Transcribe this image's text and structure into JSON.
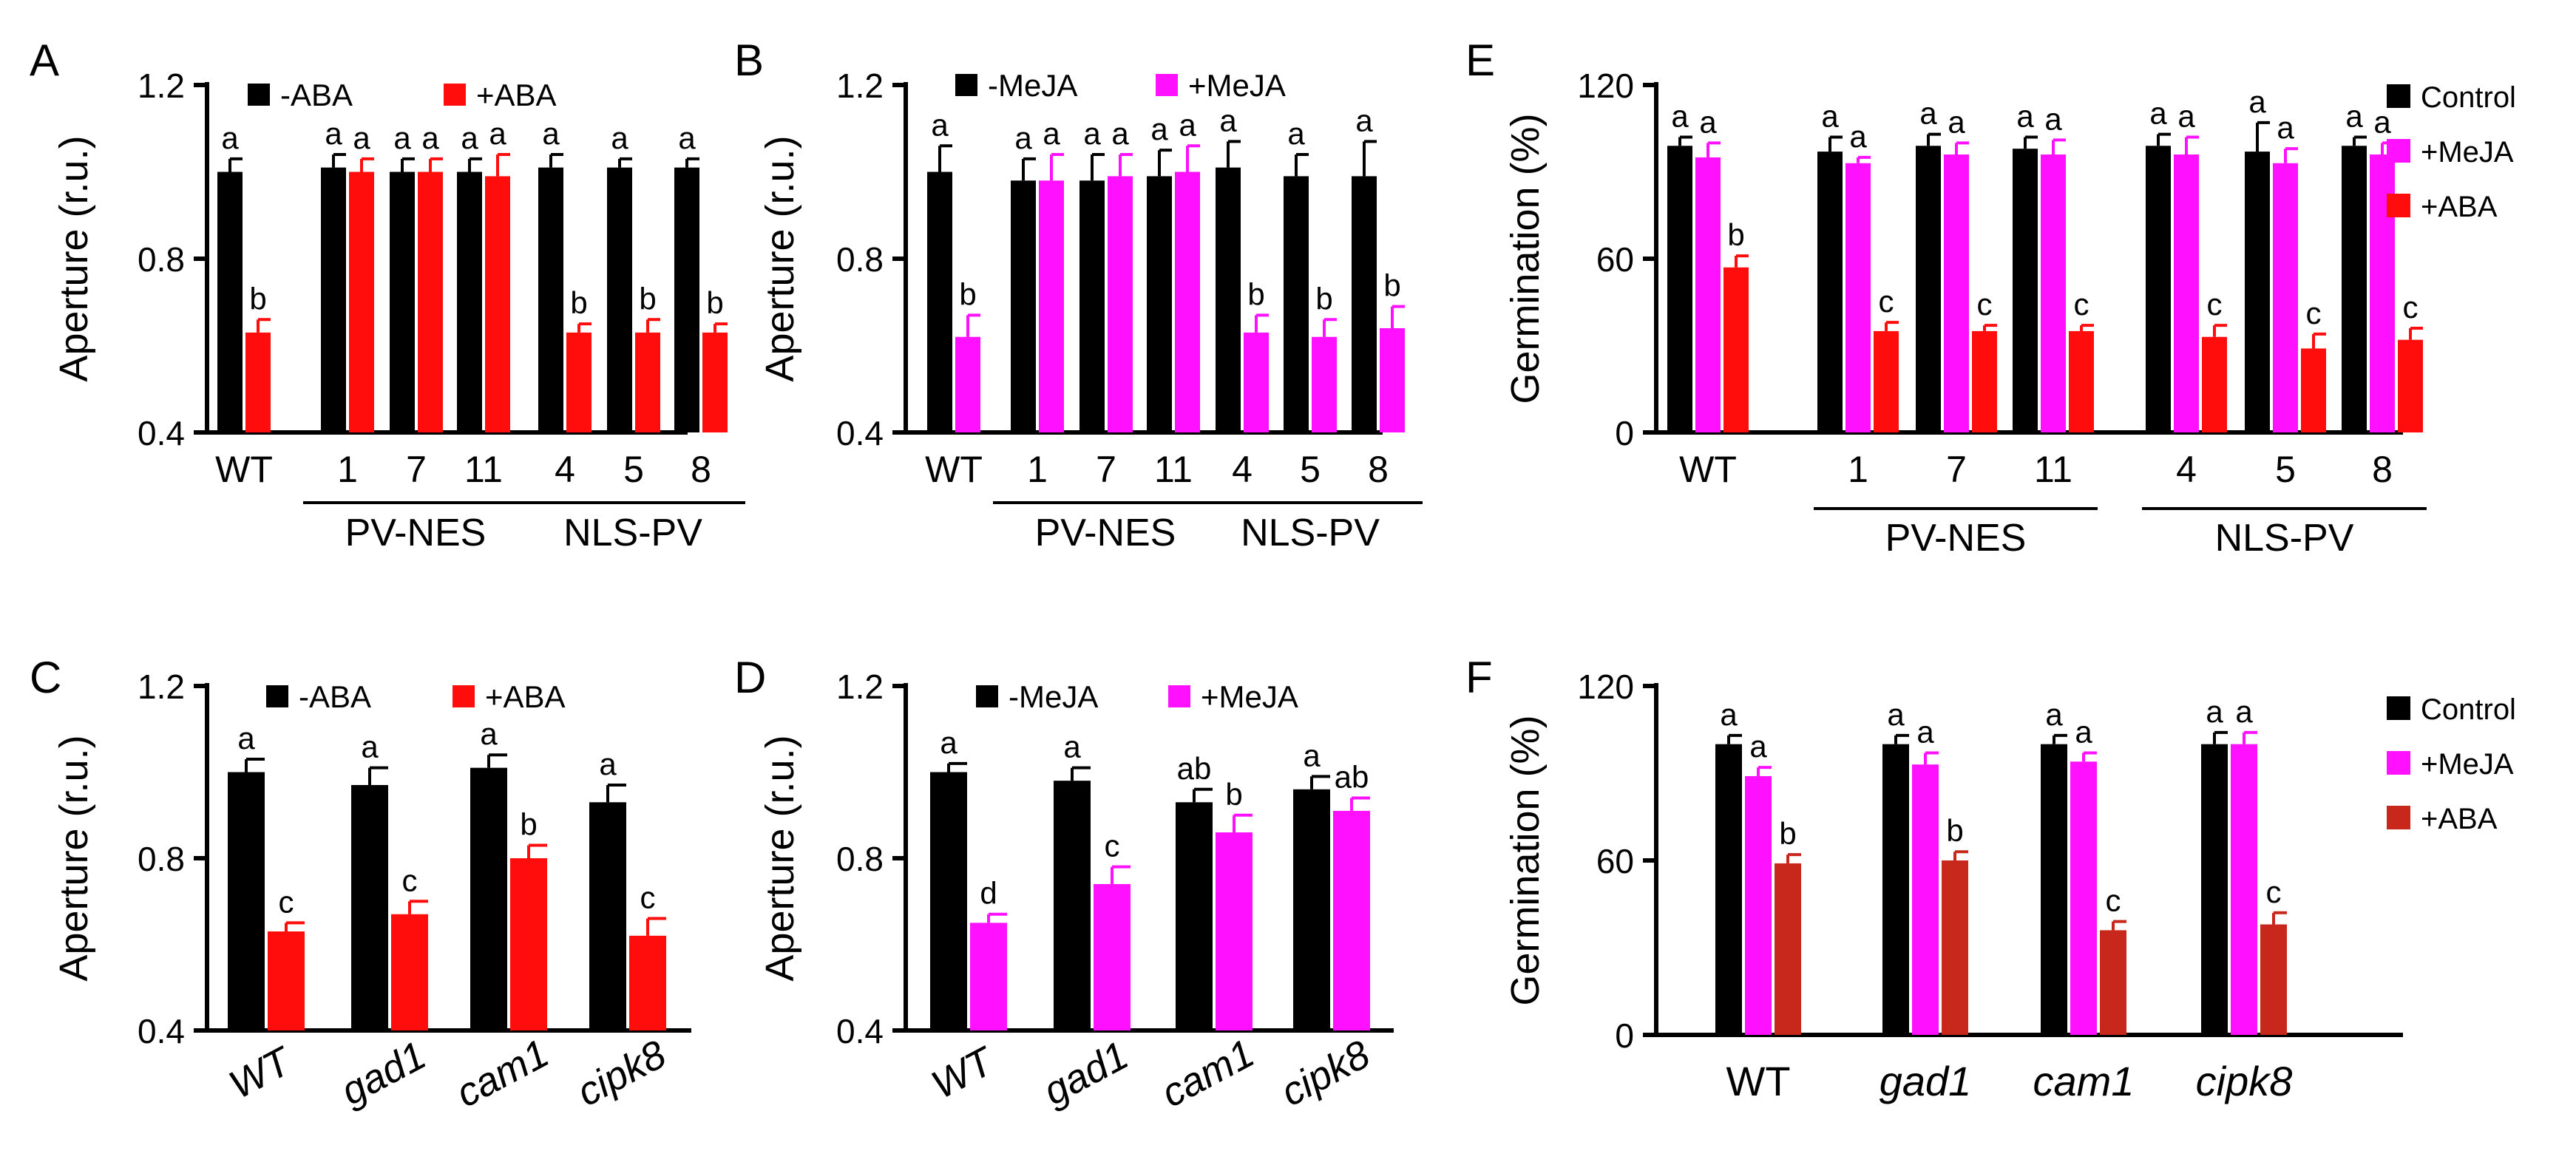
{
  "colors": {
    "ctrl": "#000000",
    "aba": "#ff0d0d",
    "meja": "#ff10ff",
    "aba_dark": "#c8281c"
  },
  "chart_data": [
    {
      "panel": "A",
      "type": "bar",
      "ylabel": "Aperture (r.u.)",
      "ylim": [
        0.4,
        1.2
      ],
      "yticks": [
        "0.4",
        "0.8",
        "1.2"
      ],
      "categories": [
        "WT",
        "1",
        "7",
        "11",
        "4",
        "5",
        "8"
      ],
      "groups": [
        {
          "label": "PV-NES",
          "from": 1,
          "to": 3
        },
        {
          "label": "NLS-PV",
          "from": 4,
          "to": 6
        }
      ],
      "legend": [
        "-ABA",
        "+ABA"
      ],
      "legend_pos": "top",
      "series": [
        {
          "name": "-ABA",
          "color": "ctrl",
          "values": [
            1.0,
            1.01,
            1.0,
            1.0,
            1.01,
            1.01,
            1.01
          ],
          "errors": [
            0.03,
            0.03,
            0.03,
            0.03,
            0.03,
            0.02,
            0.02
          ],
          "letters": [
            "a",
            "a",
            "a",
            "a",
            "a",
            "a",
            "a"
          ]
        },
        {
          "name": "+ABA",
          "color": "aba",
          "values": [
            0.63,
            1.0,
            1.0,
            0.99,
            0.63,
            0.63,
            0.63
          ],
          "errors": [
            0.03,
            0.03,
            0.03,
            0.05,
            0.02,
            0.03,
            0.02
          ],
          "letters": [
            "b",
            "a",
            "a",
            "a",
            "b",
            "b",
            "b"
          ]
        }
      ]
    },
    {
      "panel": "B",
      "type": "bar",
      "ylabel": "Aperture (r.u.)",
      "ylim": [
        0.4,
        1.2
      ],
      "yticks": [
        "0.4",
        "0.8",
        "1.2"
      ],
      "categories": [
        "WT",
        "1",
        "7",
        "11",
        "4",
        "5",
        "8"
      ],
      "groups": [
        {
          "label": "PV-NES",
          "from": 1,
          "to": 3
        },
        {
          "label": "NLS-PV",
          "from": 4,
          "to": 6
        }
      ],
      "legend": [
        "-MeJA",
        "+MeJA"
      ],
      "legend_pos": "top",
      "series": [
        {
          "name": "-MeJA",
          "color": "ctrl",
          "values": [
            1.0,
            0.98,
            0.98,
            0.99,
            1.01,
            0.99,
            0.99
          ],
          "errors": [
            0.06,
            0.05,
            0.06,
            0.06,
            0.06,
            0.05,
            0.08
          ],
          "letters": [
            "a",
            "a",
            "a",
            "a",
            "a",
            "a",
            "a"
          ]
        },
        {
          "name": "+MeJA",
          "color": "meja",
          "values": [
            0.62,
            0.98,
            0.99,
            1.0,
            0.63,
            0.62,
            0.64
          ],
          "errors": [
            0.05,
            0.06,
            0.05,
            0.06,
            0.04,
            0.04,
            0.05
          ],
          "letters": [
            "b",
            "a",
            "a",
            "a",
            "b",
            "b",
            "b"
          ]
        }
      ]
    },
    {
      "panel": "E",
      "type": "bar",
      "ylabel": "Germination (%)",
      "ylim": [
        0,
        120
      ],
      "yticks": [
        "0",
        "60",
        "120"
      ],
      "categories": [
        "WT",
        "1",
        "7",
        "11",
        "4",
        "5",
        "8"
      ],
      "groups": [
        {
          "label": "PV-NES",
          "from": 1,
          "to": 3
        },
        {
          "label": "NLS-PV",
          "from": 4,
          "to": 6
        }
      ],
      "legend": [
        "Control",
        "+MeJA",
        "+ABA"
      ],
      "legend_pos": "right",
      "series": [
        {
          "name": "Control",
          "color": "ctrl",
          "values": [
            99,
            97,
            99,
            98,
            99,
            97,
            99
          ],
          "errors": [
            3,
            5,
            4,
            4,
            4,
            10,
            3
          ],
          "letters": [
            "a",
            "a",
            "a",
            "a",
            "a",
            "a",
            "a"
          ]
        },
        {
          "name": "+MeJA",
          "color": "meja",
          "values": [
            95,
            93,
            96,
            96,
            96,
            93,
            96
          ],
          "errors": [
            5,
            2,
            4,
            5,
            6,
            5,
            4
          ],
          "letters": [
            "a",
            "a",
            "a",
            "a",
            "a",
            "a",
            "a"
          ]
        },
        {
          "name": "+ABA",
          "color": "aba",
          "values": [
            57,
            35,
            35,
            35,
            33,
            29,
            32
          ],
          "errors": [
            4,
            3,
            2,
            2,
            4,
            5,
            4
          ],
          "letters": [
            "b",
            "c",
            "c",
            "c",
            "c",
            "c",
            "c"
          ]
        }
      ]
    },
    {
      "panel": "C",
      "type": "bar",
      "ylabel": "Aperture (r.u.)",
      "ylim": [
        0.4,
        1.2
      ],
      "yticks": [
        "0.4",
        "0.8",
        "1.2"
      ],
      "categories": [
        "WT",
        "gad1",
        "cam1",
        "cipk8"
      ],
      "legend": [
        "-ABA",
        "+ABA"
      ],
      "legend_pos": "top",
      "series": [
        {
          "name": "-ABA",
          "color": "ctrl",
          "values": [
            1.0,
            0.97,
            1.01,
            0.93
          ],
          "errors": [
            0.03,
            0.04,
            0.03,
            0.04
          ],
          "letters": [
            "a",
            "a",
            "a",
            "a"
          ]
        },
        {
          "name": "+ABA",
          "color": "aba",
          "values": [
            0.63,
            0.67,
            0.8,
            0.62
          ],
          "errors": [
            0.02,
            0.03,
            0.03,
            0.04
          ],
          "letters": [
            "c",
            "c",
            "b",
            "c"
          ]
        }
      ]
    },
    {
      "panel": "D",
      "type": "bar",
      "ylabel": "Aperture (r.u.)",
      "ylim": [
        0.4,
        1.2
      ],
      "yticks": [
        "0.4",
        "0.8",
        "1.2"
      ],
      "categories": [
        "WT",
        "gad1",
        "cam1",
        "cipk8"
      ],
      "legend": [
        "-MeJA",
        "+MeJA"
      ],
      "legend_pos": "top",
      "series": [
        {
          "name": "-MeJA",
          "color": "ctrl",
          "values": [
            1.0,
            0.98,
            0.93,
            0.96
          ],
          "errors": [
            0.02,
            0.03,
            0.03,
            0.03
          ],
          "letters": [
            "a",
            "a",
            "ab",
            "a"
          ]
        },
        {
          "name": "+MeJA",
          "color": "meja",
          "values": [
            0.65,
            0.74,
            0.86,
            0.91
          ],
          "errors": [
            0.02,
            0.04,
            0.04,
            0.03
          ],
          "letters": [
            "d",
            "c",
            "b",
            "ab"
          ]
        }
      ]
    },
    {
      "panel": "F",
      "type": "bar",
      "ylabel": "Germination (%)",
      "ylim": [
        0,
        120
      ],
      "yticks": [
        "0",
        "60",
        "120"
      ],
      "categories": [
        "WT",
        "gad1",
        "cam1",
        "cipk8"
      ],
      "legend": [
        "Control",
        "+MeJA",
        "+ABA"
      ],
      "legend_pos": "right",
      "series": [
        {
          "name": "Control",
          "color": "ctrl",
          "values": [
            100,
            100,
            100,
            100
          ],
          "errors": [
            3,
            3,
            3,
            4
          ],
          "letters": [
            "a",
            "a",
            "a",
            "a"
          ]
        },
        {
          "name": "+MeJA",
          "color": "meja",
          "values": [
            89,
            93,
            94,
            100
          ],
          "errors": [
            3,
            4,
            3,
            4
          ],
          "letters": [
            "a",
            "a",
            "a",
            "a"
          ]
        },
        {
          "name": "+ABA",
          "color": "aba_dark",
          "values": [
            59,
            60,
            36,
            38
          ],
          "errors": [
            3,
            3,
            3,
            4
          ],
          "letters": [
            "b",
            "b",
            "c",
            "c"
          ]
        }
      ]
    }
  ]
}
